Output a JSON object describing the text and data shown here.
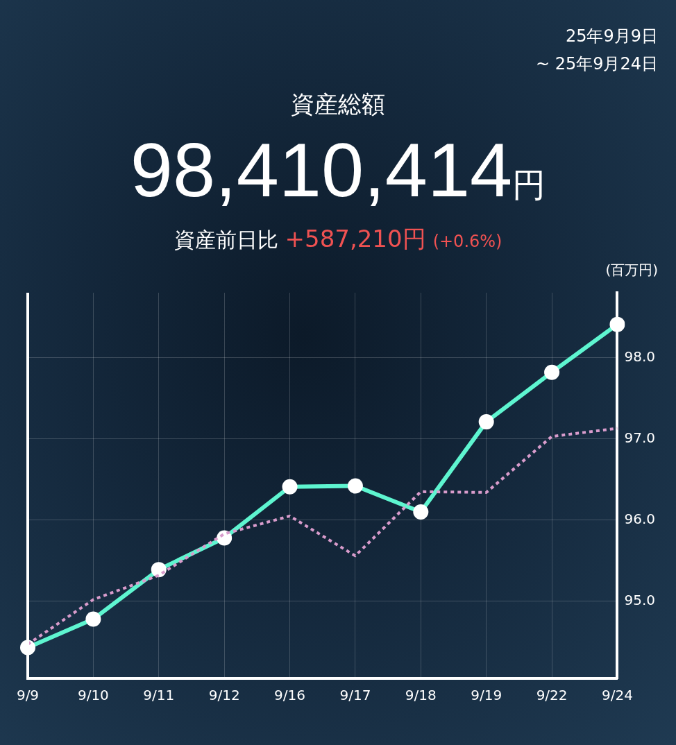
{
  "chart_data": {
    "type": "line",
    "title": "資産総額",
    "ylabel": "(百万円)",
    "annotations": [
      "25年9月9日",
      "~ 25年9月24日",
      "98,410,414",
      "円",
      "資産前日比",
      "+587,210円",
      "(+0.6%)"
    ],
    "categories": [
      "9/9",
      "9/10",
      "9/11",
      "9/12",
      "9/16",
      "9/17",
      "9/18",
      "9/19",
      "9/22",
      "9/24"
    ],
    "series": [
      {
        "color": "#d99ccc",
        "line_style": "dotted",
        "marker": "none",
        "values": [
          94.47,
          95.02,
          95.32,
          95.83,
          96.05,
          95.56,
          96.35,
          96.34,
          97.03,
          97.13
        ]
      },
      {
        "color": "#5ef5d0",
        "line_style": "solid",
        "marker": "circle",
        "values": [
          94.43,
          94.78,
          95.39,
          95.78,
          96.41,
          96.42,
          96.1,
          97.21,
          97.82,
          98.41
        ]
      }
    ],
    "ylim": [
      94.05,
      98.8
    ],
    "yticks": [
      {
        "value": 95,
        "label": "95.0"
      },
      {
        "value": 96,
        "label": "96.0"
      },
      {
        "value": 97,
        "label": "97.0"
      },
      {
        "value": 98,
        "label": "98.0"
      }
    ],
    "grid": true,
    "legend": false
  }
}
